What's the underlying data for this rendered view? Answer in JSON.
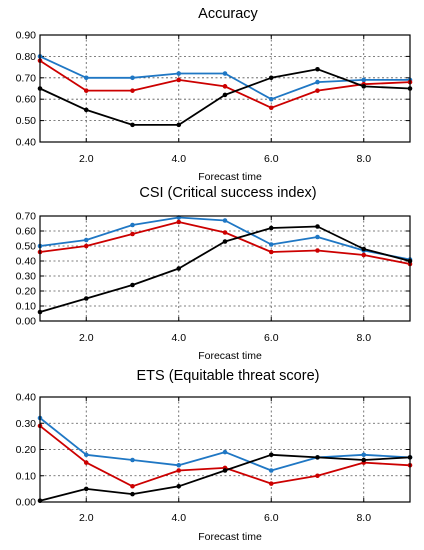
{
  "chart_data": [
    {
      "type": "line",
      "title": "Accuracy",
      "xlabel": "Forecast time",
      "ylabel": "",
      "x": [
        1,
        2,
        3,
        4,
        5,
        6,
        7,
        8,
        9
      ],
      "xlim": [
        1,
        9
      ],
      "ylim": [
        0.4,
        0.9
      ],
      "xticks": [
        2.0,
        4.0,
        6.0,
        8.0
      ],
      "xtick_labels": [
        "2.0",
        "4.0",
        "6.0",
        "8.0"
      ],
      "yticks": [
        0.4,
        0.5,
        0.6,
        0.7,
        0.8,
        0.9
      ],
      "ytick_labels": [
        "0.40",
        "0.50",
        "0.60",
        "0.70",
        "0.80",
        "0.90"
      ],
      "grid": true,
      "series": [
        {
          "color": "#1f77c4",
          "values": [
            0.8,
            0.7,
            0.7,
            0.72,
            0.72,
            0.6,
            0.68,
            0.69,
            0.69
          ]
        },
        {
          "color": "#cc0000",
          "values": [
            0.78,
            0.64,
            0.64,
            0.69,
            0.66,
            0.56,
            0.64,
            0.67,
            0.68
          ]
        },
        {
          "color": "#000000",
          "values": [
            0.65,
            0.55,
            0.48,
            0.48,
            0.62,
            0.7,
            0.74,
            0.66,
            0.65
          ]
        }
      ]
    },
    {
      "type": "line",
      "title": "CSI (Critical success index)",
      "xlabel": "Forecast time",
      "ylabel": "",
      "x": [
        1,
        2,
        3,
        4,
        5,
        6,
        7,
        8,
        9
      ],
      "xlim": [
        1,
        9
      ],
      "ylim": [
        0.0,
        0.7
      ],
      "xticks": [
        2.0,
        4.0,
        6.0,
        8.0
      ],
      "xtick_labels": [
        "2.0",
        "4.0",
        "6.0",
        "8.0"
      ],
      "yticks": [
        0.0,
        0.1,
        0.2,
        0.3,
        0.4,
        0.5,
        0.6,
        0.7
      ],
      "ytick_labels": [
        "0.00",
        "0.10",
        "0.20",
        "0.30",
        "0.40",
        "0.50",
        "0.60",
        "0.70"
      ],
      "grid": true,
      "series": [
        {
          "color": "#1f77c4",
          "values": [
            0.5,
            0.54,
            0.64,
            0.69,
            0.67,
            0.51,
            0.56,
            0.47,
            0.41
          ]
        },
        {
          "color": "#cc0000",
          "values": [
            0.46,
            0.5,
            0.58,
            0.66,
            0.59,
            0.46,
            0.47,
            0.44,
            0.38
          ]
        },
        {
          "color": "#000000",
          "values": [
            0.06,
            0.15,
            0.24,
            0.35,
            0.53,
            0.62,
            0.63,
            0.48,
            0.4
          ]
        }
      ]
    },
    {
      "type": "line",
      "title": "ETS (Equitable threat score)",
      "xlabel": "Forecast time",
      "ylabel": "",
      "x": [
        1,
        2,
        3,
        4,
        5,
        6,
        7,
        8,
        9
      ],
      "xlim": [
        1,
        9
      ],
      "ylim": [
        0.0,
        0.4
      ],
      "xticks": [
        2.0,
        4.0,
        6.0,
        8.0
      ],
      "xtick_labels": [
        "2.0",
        "4.0",
        "6.0",
        "8.0"
      ],
      "yticks": [
        0.0,
        0.1,
        0.2,
        0.3,
        0.4
      ],
      "ytick_labels": [
        "0.00",
        "0.10",
        "0.20",
        "0.30",
        "0.40"
      ],
      "grid": true,
      "series": [
        {
          "color": "#1f77c4",
          "values": [
            0.32,
            0.18,
            0.16,
            0.14,
            0.19,
            0.12,
            0.17,
            0.18,
            0.17
          ]
        },
        {
          "color": "#cc0000",
          "values": [
            0.29,
            0.15,
            0.06,
            0.12,
            0.13,
            0.07,
            0.1,
            0.15,
            0.14
          ]
        },
        {
          "color": "#000000",
          "values": [
            0.005,
            0.05,
            0.03,
            0.06,
            0.12,
            0.18,
            0.17,
            0.16,
            0.17
          ]
        }
      ]
    }
  ]
}
